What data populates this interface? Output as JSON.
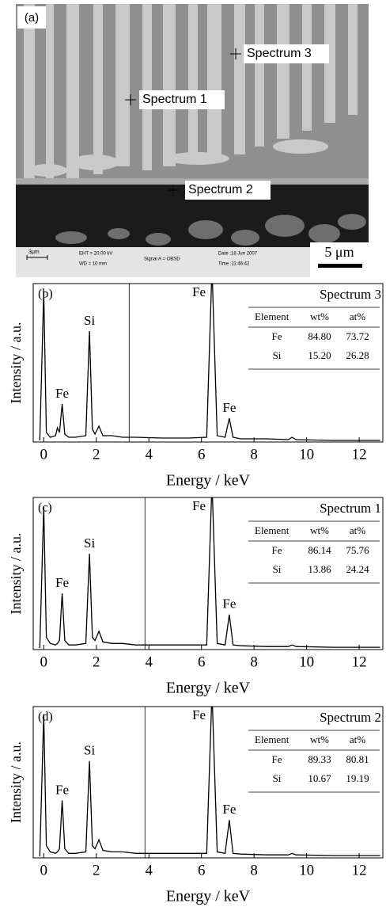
{
  "image": {
    "panel_label": "(a)",
    "labels": [
      "Spectrum 3",
      "Spectrum 1",
      "Spectrum 2"
    ],
    "scale_bar": "5 μm",
    "info": [
      "3μm",
      "EHT = 20.00 kV",
      "WD = 10 mm",
      "Signal A = OBSD",
      "Date :18 Jun 2007",
      "Time :11:46:42"
    ]
  },
  "chart_data": [
    {
      "type": "line",
      "panel_label": "(b)",
      "title": "Spectrum 3",
      "x_label": "Energy / keV",
      "y_label": "Intensity / a.u.",
      "xlim": [
        -0.4,
        12.9
      ],
      "xticks": [
        0,
        2,
        4,
        6,
        8,
        10,
        12
      ],
      "ylim": [
        0,
        100
      ],
      "marker_x": 3.25,
      "color": "#000000",
      "x": [
        -0.15,
        0,
        0.1,
        0.25,
        0.45,
        0.52,
        0.6,
        0.7,
        0.8,
        0.95,
        1.2,
        1.6,
        1.74,
        1.85,
        1.95,
        2.1,
        2.25,
        2.6,
        3.0,
        3.5,
        4.5,
        5.5,
        6.2,
        6.4,
        6.6,
        6.9,
        7.06,
        7.2,
        7.5,
        8.5,
        9.3,
        9.45,
        9.6,
        11,
        12.8
      ],
      "values": [
        1,
        95,
        6,
        3,
        4,
        9,
        6,
        24,
        5,
        3,
        3,
        4,
        70,
        8,
        5,
        10,
        4,
        4,
        3,
        3,
        2.5,
        2.5,
        3,
        110,
        4,
        3,
        15,
        3,
        2,
        2,
        1.5,
        3,
        1.5,
        1,
        1
      ],
      "annotations": [
        {
          "text": "Fe",
          "x": 0.7
        },
        {
          "text": "Si",
          "x": 1.74
        },
        {
          "text": "Fe",
          "x": 6.4
        },
        {
          "text": "Fe",
          "x": 7.06
        }
      ],
      "table": {
        "header": [
          "Element",
          "wt%",
          "at%"
        ],
        "rows": [
          [
            "Fe",
            "84.80",
            "73.72"
          ],
          [
            "Si",
            "15.20",
            "26.28"
          ]
        ]
      }
    },
    {
      "type": "line",
      "panel_label": "(c)",
      "title": "Spectrum 1",
      "x_label": "Energy / keV",
      "y_label": "Intensity / a.u.",
      "xlim": [
        -0.4,
        12.9
      ],
      "xticks": [
        0,
        2,
        4,
        6,
        8,
        10,
        12
      ],
      "ylim": [
        0,
        100
      ],
      "marker_x": 3.85,
      "color": "#000000",
      "x": [
        -0.15,
        0,
        0.1,
        0.25,
        0.45,
        0.52,
        0.6,
        0.7,
        0.8,
        0.95,
        1.2,
        1.6,
        1.74,
        1.85,
        1.95,
        2.1,
        2.25,
        2.6,
        3.0,
        3.5,
        4.5,
        5.5,
        6.2,
        6.4,
        6.6,
        6.9,
        7.06,
        7.2,
        7.5,
        8.5,
        9.3,
        9.45,
        9.6,
        11,
        12.8
      ],
      "values": [
        1,
        94,
        8,
        4,
        3,
        4,
        6,
        37,
        6,
        3,
        3,
        4,
        63,
        8,
        6,
        12,
        5,
        4,
        4,
        3,
        3,
        3,
        3,
        110,
        4,
        3,
        23,
        3,
        2.5,
        2,
        2,
        3,
        2,
        1.5,
        1.5
      ],
      "annotations": [
        {
          "text": "Fe",
          "x": 0.7
        },
        {
          "text": "Si",
          "x": 1.74
        },
        {
          "text": "Fe",
          "x": 6.4
        },
        {
          "text": "Fe",
          "x": 7.06
        }
      ],
      "table": {
        "header": [
          "Element",
          "wt%",
          "at%"
        ],
        "rows": [
          [
            "Fe",
            "86.14",
            "75.76"
          ],
          [
            "Si",
            "13.86",
            "24.24"
          ]
        ]
      }
    },
    {
      "type": "line",
      "panel_label": "(d)",
      "title": "Spectrum 2",
      "x_label": "Energy / keV",
      "y_label": "Intensity / a.u.",
      "xlim": [
        -0.4,
        12.9
      ],
      "xticks": [
        0,
        2,
        4,
        6,
        8,
        10,
        12
      ],
      "ylim": [
        0,
        100
      ],
      "marker_x": 3.85,
      "color": "#000000",
      "x": [
        -0.15,
        0,
        0.1,
        0.25,
        0.45,
        0.52,
        0.6,
        0.7,
        0.8,
        0.95,
        1.2,
        1.6,
        1.74,
        1.85,
        1.95,
        2.1,
        2.25,
        2.6,
        3.0,
        3.5,
        4.5,
        5.5,
        6.2,
        6.4,
        6.6,
        6.9,
        7.06,
        7.2,
        7.5,
        8.5,
        9.3,
        9.45,
        9.6,
        11,
        12.8
      ],
      "values": [
        1,
        95,
        8,
        4,
        3,
        4,
        6,
        38,
        6,
        3,
        3,
        4,
        64,
        8,
        6,
        12,
        5,
        4,
        4,
        3,
        3,
        3,
        3,
        110,
        4,
        3,
        25,
        3,
        2.5,
        2,
        2,
        3,
        2,
        1.5,
        1.5
      ],
      "annotations": [
        {
          "text": "Fe",
          "x": 0.7
        },
        {
          "text": "Si",
          "x": 1.74
        },
        {
          "text": "Fe",
          "x": 6.4
        },
        {
          "text": "Fe",
          "x": 7.06
        }
      ],
      "table": {
        "header": [
          "Element",
          "wt%",
          "at%"
        ],
        "rows": [
          [
            "Fe",
            "89.33",
            "80.81"
          ],
          [
            "Si",
            "10.67",
            "19.19"
          ]
        ]
      }
    }
  ]
}
